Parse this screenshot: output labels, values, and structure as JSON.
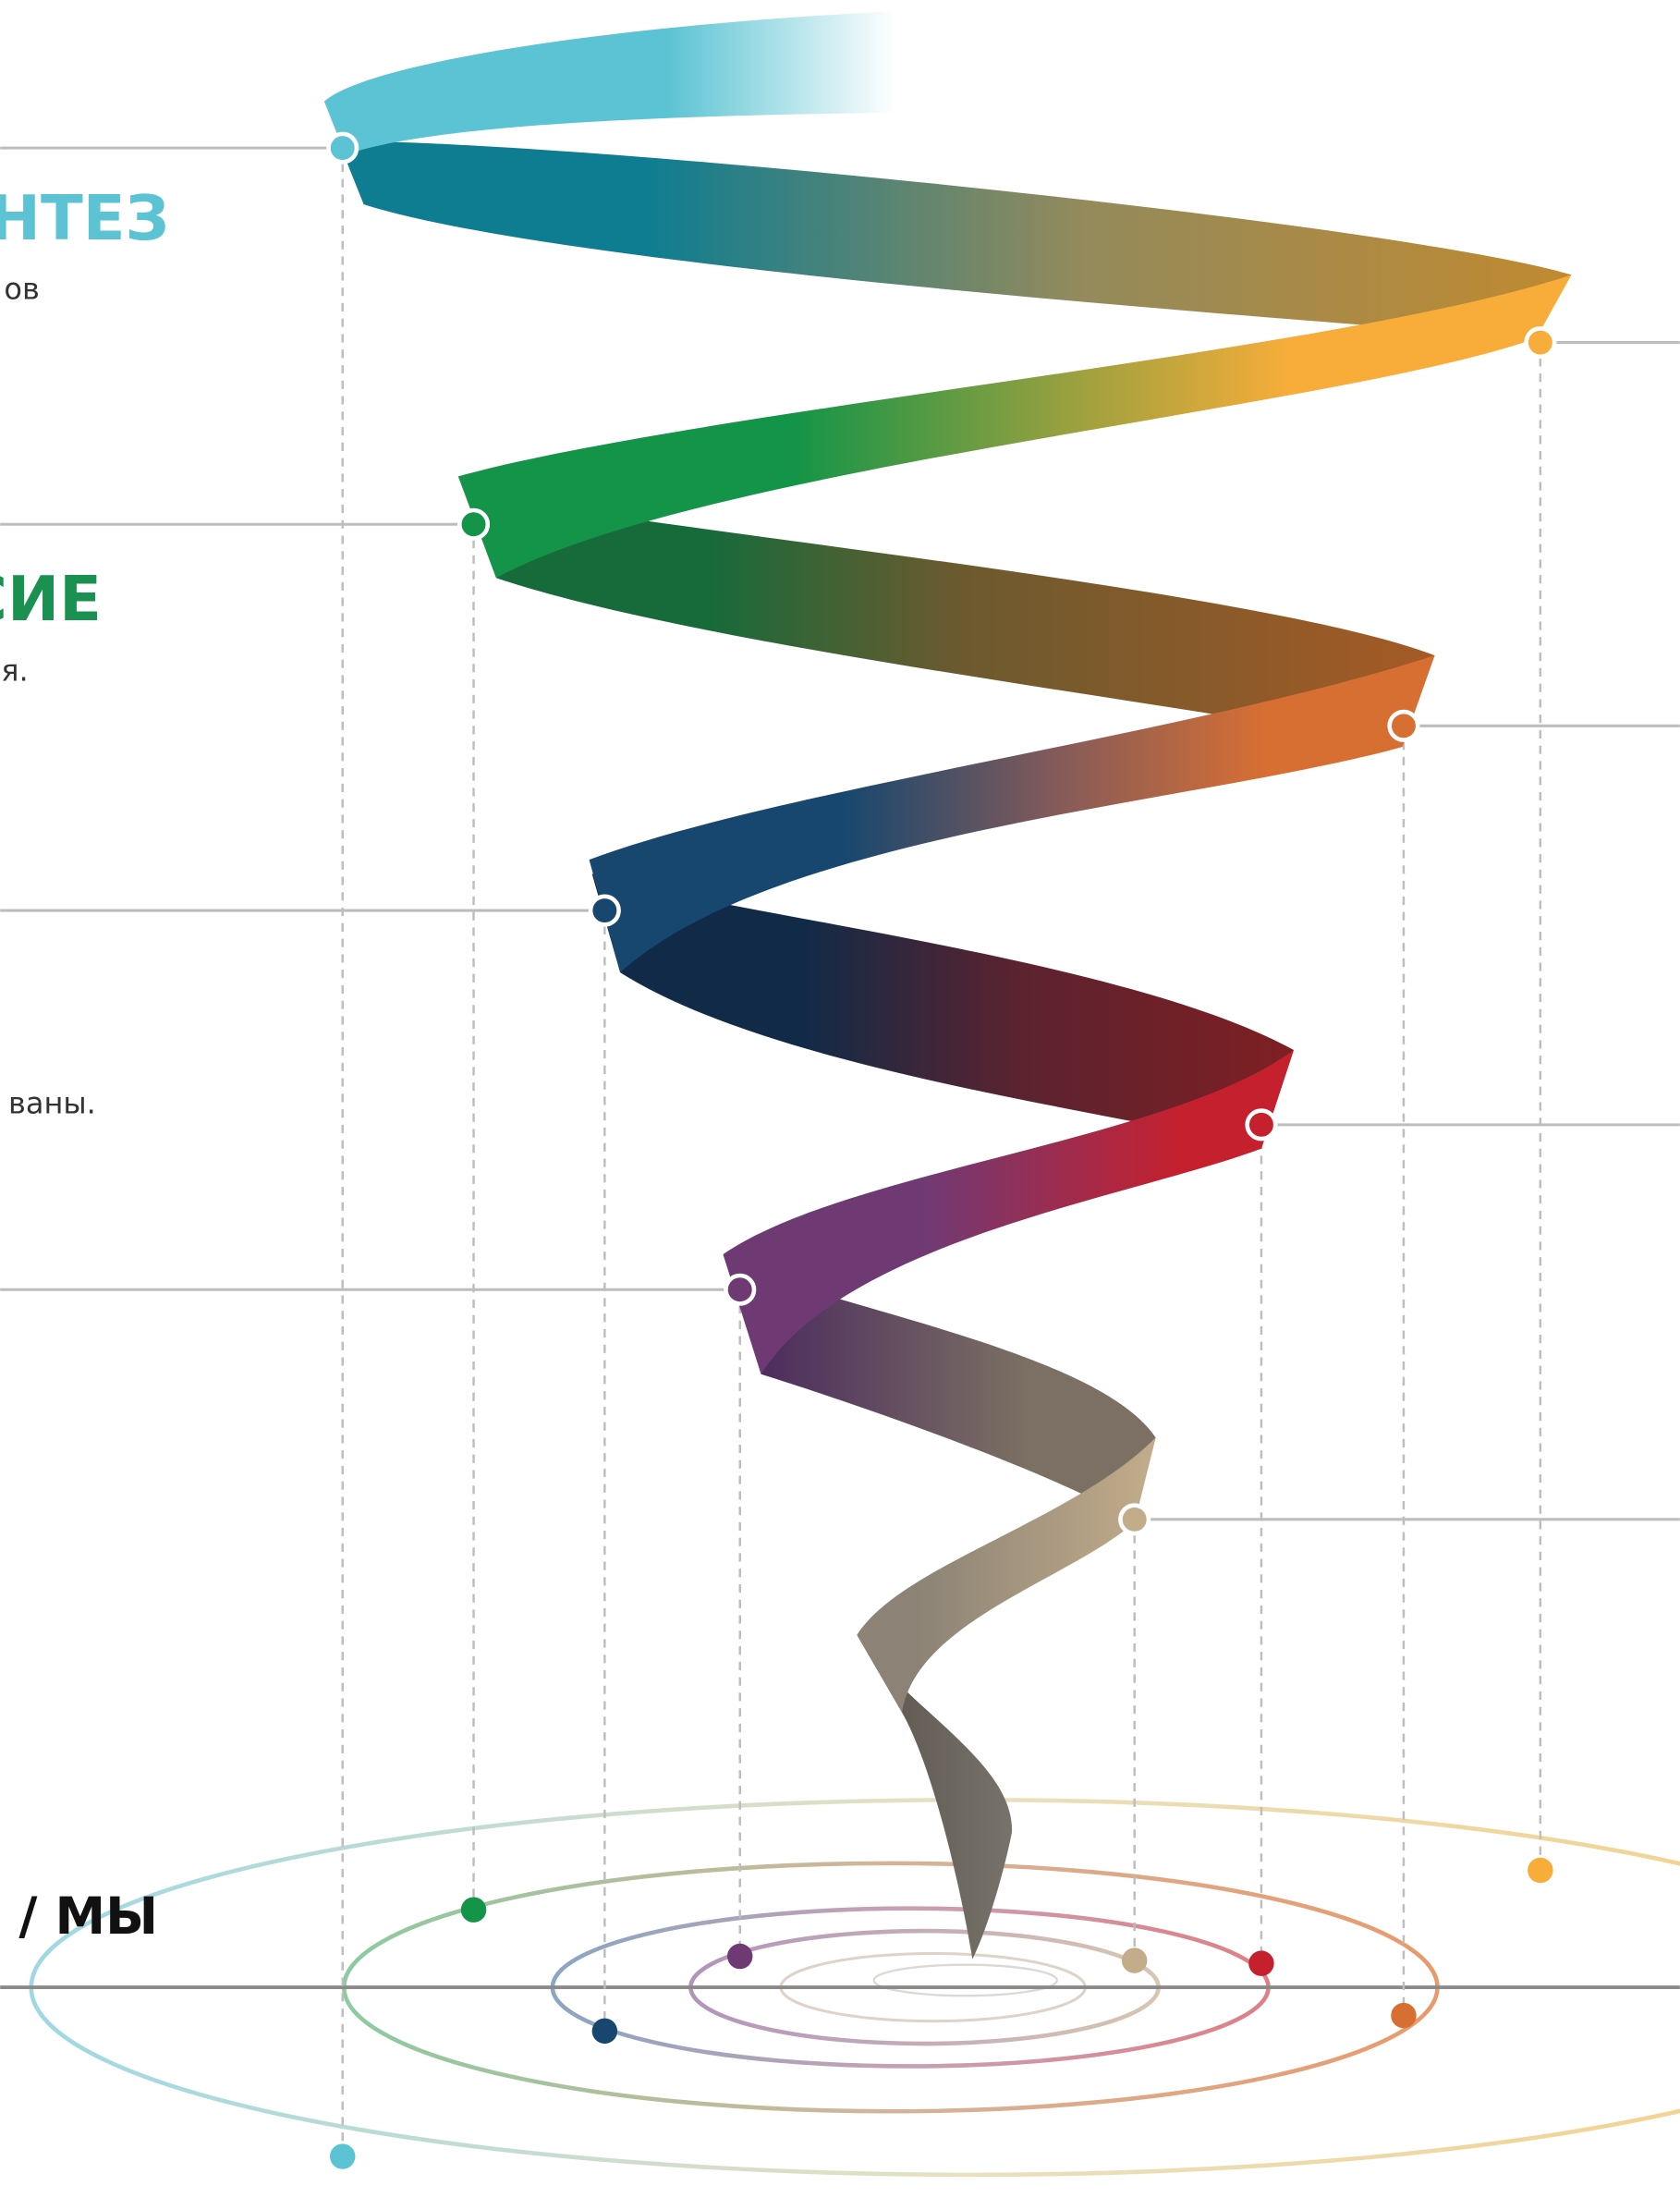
{
  "texts": {
    "heading_1": "НТЕЗ",
    "text_1": "ов",
    "heading_2": "СИЕ",
    "text_2": "я.",
    "text_3": "ваны.",
    "footer_label": "/ МЫ"
  }
}
